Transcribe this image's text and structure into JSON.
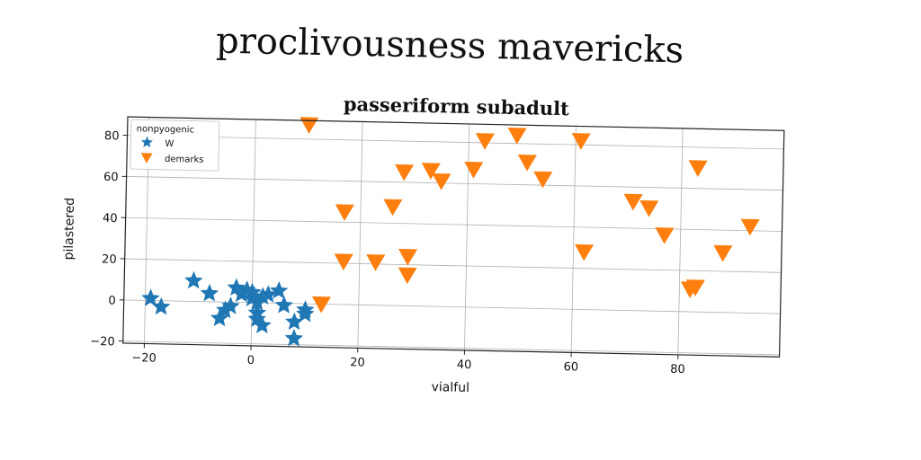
{
  "suptitle": "proclivousness mavericks",
  "chart_data": {
    "type": "scatter",
    "title": "passeriform subadult",
    "xlabel": "vialful",
    "ylabel": "pilastered",
    "xlim": [
      -24,
      99
    ],
    "ylim": [
      -21,
      89
    ],
    "xticks": [
      -20,
      0,
      20,
      40,
      60,
      80
    ],
    "yticks": [
      -20,
      0,
      20,
      40,
      60,
      80
    ],
    "grid": true,
    "legend": {
      "title": "nonpyogenic",
      "placement": "top-left"
    },
    "series": [
      {
        "name": "W",
        "marker": "star",
        "color": "#1f77b4",
        "points": [
          [
            -19,
            1
          ],
          [
            -17,
            -3
          ],
          [
            -11,
            10
          ],
          [
            -8,
            4
          ],
          [
            -6,
            -8
          ],
          [
            -5,
            -4
          ],
          [
            -4,
            -2
          ],
          [
            -3,
            7
          ],
          [
            -2,
            4
          ],
          [
            -1,
            6
          ],
          [
            0,
            2
          ],
          [
            0,
            5
          ],
          [
            1,
            0
          ],
          [
            1,
            -5
          ],
          [
            1,
            -8
          ],
          [
            2,
            -11
          ],
          [
            2,
            3
          ],
          [
            3,
            4
          ],
          [
            5,
            6
          ],
          [
            6,
            -1
          ],
          [
            8,
            -17
          ],
          [
            8,
            -9
          ],
          [
            10,
            -3
          ],
          [
            10,
            -5
          ]
        ]
      },
      {
        "name": "demarks",
        "marker": "triangle_down",
        "color": "#ff7f0e",
        "points": [
          [
            10,
            87
          ],
          [
            13,
            0
          ],
          [
            17,
            45
          ],
          [
            17,
            21
          ],
          [
            23,
            21
          ],
          [
            26,
            48
          ],
          [
            28,
            65
          ],
          [
            29,
            24
          ],
          [
            29,
            15
          ],
          [
            33,
            66
          ],
          [
            35,
            61
          ],
          [
            41,
            67
          ],
          [
            43,
            81
          ],
          [
            49,
            84
          ],
          [
            51,
            71
          ],
          [
            54,
            63
          ],
          [
            61,
            82
          ],
          [
            62,
            28
          ],
          [
            71,
            53
          ],
          [
            74,
            50
          ],
          [
            77,
            37
          ],
          [
            82,
            11
          ],
          [
            83,
            12
          ],
          [
            83,
            70
          ],
          [
            88,
            29
          ],
          [
            93,
            42
          ]
        ]
      }
    ]
  }
}
